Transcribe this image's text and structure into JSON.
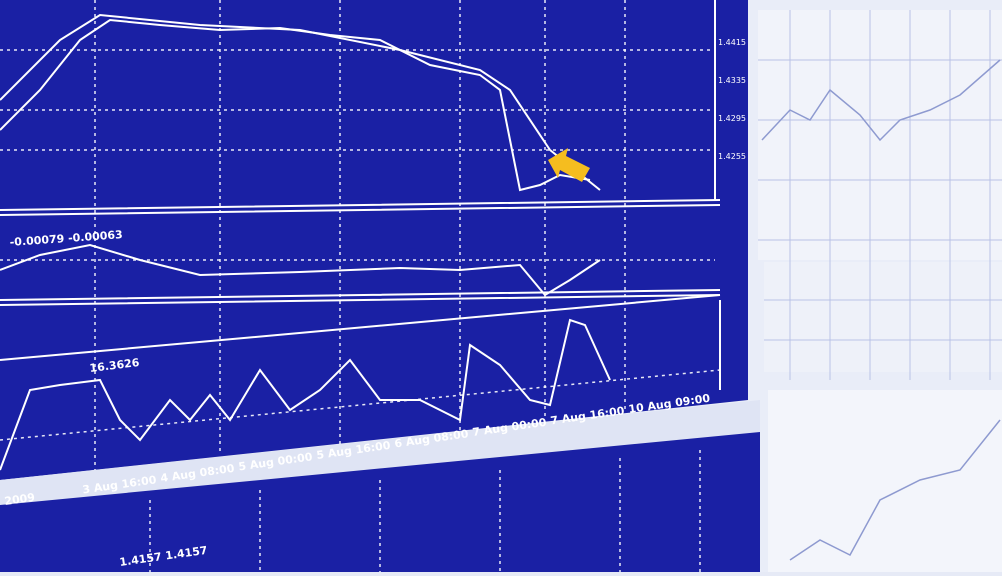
{
  "main_chart": {
    "price_labels": [
      "1.4415",
      "1.4335",
      "1.4295",
      "1.4255"
    ],
    "macd_label": "-0.00079 -0.00063",
    "stoch_label": "16.3626",
    "time_labels": [
      "2009",
      "3 Aug 16:00",
      "4 Aug 08:00",
      "5 Aug 00:00",
      "5 Aug 16:00",
      "6 Aug 08:00",
      "7 Aug 00:00",
      "7 Aug 16:00",
      "10 Aug 09:00"
    ]
  },
  "bottom_chart": {
    "label": "1.4157 1.4157"
  }
}
